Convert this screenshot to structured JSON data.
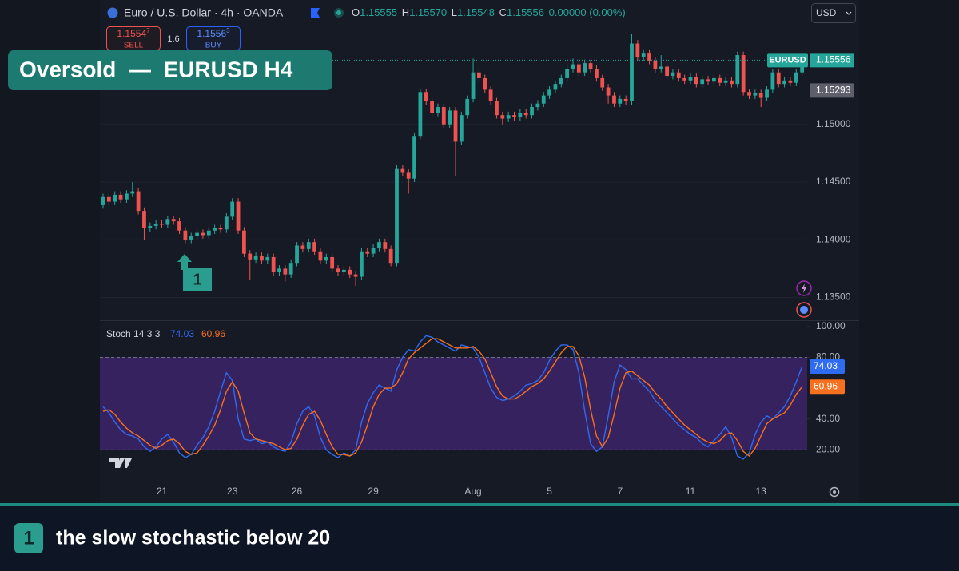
{
  "header": {
    "symbol": "Euro / U.S. Dollar · 4h · OANDA",
    "ohlc": [
      {
        "label": "O",
        "value": "1.15555"
      },
      {
        "label": "H",
        "value": "1.15570"
      },
      {
        "label": "L",
        "value": "1.15548"
      },
      {
        "label": "C",
        "value": "1.15556"
      }
    ],
    "change": "0.00000 (0.00%)",
    "currency": "USD",
    "sell": {
      "price_main": "1.1554",
      "price_pip": "7",
      "label": "SELL"
    },
    "spread": "1.6",
    "buy": {
      "price_main": "1.1556",
      "price_pip": "3",
      "label": "BUY"
    }
  },
  "title_banner": "Oversold  —  EURUSD H4",
  "footer": {
    "badge": "1",
    "text": "the slow stochastic below 20"
  },
  "chart_data": [
    {
      "type": "candlestick",
      "annotation": "1",
      "symbol_tag": "EURUSD",
      "last_price": 1.15556,
      "reference_price": 1.15293,
      "up_color": "#26a69a",
      "down_color": "#ef5350",
      "grid": true,
      "ylim": [
        1.1331,
        1.1587
      ],
      "yticks": [
        {
          "value": 1.135,
          "label": "1.13500"
        },
        {
          "value": 1.14,
          "label": "1.14000"
        },
        {
          "value": 1.145,
          "label": "1.14500"
        },
        {
          "value": 1.15,
          "label": "1.15000"
        }
      ],
      "open": [
        1.143,
        1.1437,
        1.1433,
        1.1439,
        1.1435,
        1.144,
        1.1442,
        1.1425,
        1.141,
        1.1412,
        1.1414,
        1.1413,
        1.1418,
        1.1416,
        1.1408,
        1.14,
        1.1403,
        1.1406,
        1.1404,
        1.1408,
        1.141,
        1.1409,
        1.142,
        1.1433,
        1.1408,
        1.1388,
        1.1383,
        1.1386,
        1.1382,
        1.1385,
        1.1372,
        1.1375,
        1.137,
        1.138,
        1.1395,
        1.1392,
        1.1398,
        1.139,
        1.1382,
        1.1385,
        1.1375,
        1.1372,
        1.1374,
        1.137,
        1.1368,
        1.139,
        1.1388,
        1.1393,
        1.1398,
        1.1392,
        1.138,
        1.1462,
        1.1458,
        1.1453,
        1.149,
        1.1528,
        1.152,
        1.151,
        1.1515,
        1.15,
        1.1512,
        1.1485,
        1.1508,
        1.1522,
        1.1545,
        1.154,
        1.153,
        1.152,
        1.1508,
        1.1505,
        1.1508,
        1.1506,
        1.151,
        1.1508,
        1.1515,
        1.1518,
        1.1525,
        1.153,
        1.1535,
        1.154,
        1.1548,
        1.1552,
        1.1545,
        1.1553,
        1.1548,
        1.154,
        1.1532,
        1.1525,
        1.1518,
        1.1522,
        1.152,
        1.157,
        1.1558,
        1.1562,
        1.1555,
        1.1548,
        1.155,
        1.1542,
        1.1545,
        1.154,
        1.1538,
        1.1541,
        1.1535,
        1.1539,
        1.1537,
        1.154,
        1.1536,
        1.1538,
        1.1535,
        1.156,
        1.1528,
        1.1525,
        1.1527,
        1.1523,
        1.153,
        1.1545,
        1.1535,
        1.1538,
        1.1536,
        1.1545
      ],
      "high": [
        1.144,
        1.144,
        1.1442,
        1.1442,
        1.1443,
        1.145,
        1.1445,
        1.1428,
        1.1415,
        1.1417,
        1.1417,
        1.1421,
        1.1421,
        1.1419,
        1.1411,
        1.1406,
        1.1409,
        1.1409,
        1.1411,
        1.1413,
        1.1413,
        1.1423,
        1.1436,
        1.1436,
        1.1411,
        1.1391,
        1.1389,
        1.1389,
        1.1388,
        1.1388,
        1.1378,
        1.1378,
        1.1383,
        1.1398,
        1.1398,
        1.1401,
        1.1401,
        1.1393,
        1.1388,
        1.1388,
        1.1378,
        1.1377,
        1.1377,
        1.1373,
        1.1393,
        1.1393,
        1.1396,
        1.1401,
        1.1401,
        1.1395,
        1.1465,
        1.1465,
        1.1461,
        1.1493,
        1.1531,
        1.1531,
        1.1523,
        1.1518,
        1.1518,
        1.1515,
        1.1515,
        1.1511,
        1.1525,
        1.1557,
        1.1548,
        1.1543,
        1.1533,
        1.1523,
        1.1511,
        1.1511,
        1.1511,
        1.1513,
        1.1513,
        1.1518,
        1.1521,
        1.1528,
        1.1533,
        1.1538,
        1.1543,
        1.1551,
        1.1557,
        1.1555,
        1.1556,
        1.1556,
        1.1551,
        1.1543,
        1.1535,
        1.1528,
        1.1525,
        1.1525,
        1.1578,
        1.1573,
        1.1565,
        1.1565,
        1.1558,
        1.156,
        1.1553,
        1.1548,
        1.1548,
        1.1543,
        1.1544,
        1.1544,
        1.1542,
        1.1542,
        1.1543,
        1.1543,
        1.1541,
        1.1541,
        1.1563,
        1.1563,
        1.1531,
        1.153,
        1.153,
        1.1533,
        1.1548,
        1.1548,
        1.1541,
        1.1541,
        1.1548,
        1.156
      ],
      "low": [
        1.1427,
        1.143,
        1.143,
        1.1432,
        1.1432,
        1.1437,
        1.1422,
        1.14,
        1.1407,
        1.1409,
        1.141,
        1.141,
        1.1413,
        1.1405,
        1.1397,
        1.1397,
        1.14,
        1.1401,
        1.1401,
        1.1405,
        1.1406,
        1.1406,
        1.1417,
        1.1405,
        1.1385,
        1.1365,
        1.138,
        1.1379,
        1.1379,
        1.1369,
        1.1369,
        1.1364,
        1.1367,
        1.1377,
        1.1389,
        1.1389,
        1.1387,
        1.1379,
        1.1379,
        1.1372,
        1.1369,
        1.1369,
        1.1367,
        1.136,
        1.1365,
        1.1385,
        1.1385,
        1.139,
        1.1389,
        1.1377,
        1.1377,
        1.1455,
        1.144,
        1.145,
        1.1487,
        1.1517,
        1.1507,
        1.1507,
        1.1497,
        1.1497,
        1.1455,
        1.1482,
        1.1505,
        1.1519,
        1.1537,
        1.1527,
        1.1517,
        1.1505,
        1.15,
        1.1502,
        1.1503,
        1.1503,
        1.1505,
        1.1505,
        1.1512,
        1.1515,
        1.1522,
        1.1527,
        1.1532,
        1.1537,
        1.1545,
        1.1542,
        1.1542,
        1.1545,
        1.1537,
        1.1529,
        1.1518,
        1.1515,
        1.1515,
        1.1517,
        1.1517,
        1.1555,
        1.1555,
        1.1552,
        1.1545,
        1.1545,
        1.1539,
        1.1539,
        1.1537,
        1.1535,
        1.1535,
        1.1532,
        1.1532,
        1.1534,
        1.1534,
        1.1533,
        1.1533,
        1.1532,
        1.1532,
        1.1525,
        1.1522,
        1.1522,
        1.1515,
        1.152,
        1.1527,
        1.1532,
        1.1532,
        1.1533,
        1.1533,
        1.1542
      ],
      "close": [
        1.1437,
        1.1433,
        1.1439,
        1.1435,
        1.144,
        1.1442,
        1.1425,
        1.141,
        1.1412,
        1.1414,
        1.1413,
        1.1418,
        1.1416,
        1.1408,
        1.14,
        1.1403,
        1.1406,
        1.1404,
        1.1408,
        1.141,
        1.1409,
        1.142,
        1.1433,
        1.1408,
        1.1388,
        1.1383,
        1.1386,
        1.1382,
        1.1385,
        1.1372,
        1.1375,
        1.137,
        1.138,
        1.1395,
        1.1392,
        1.1398,
        1.139,
        1.1382,
        1.1385,
        1.1375,
        1.1372,
        1.1374,
        1.137,
        1.1368,
        1.139,
        1.1388,
        1.1393,
        1.1398,
        1.1392,
        1.138,
        1.1462,
        1.1458,
        1.1453,
        1.149,
        1.1528,
        1.152,
        1.151,
        1.1515,
        1.15,
        1.1512,
        1.1485,
        1.1508,
        1.1522,
        1.1545,
        1.154,
        1.153,
        1.152,
        1.1508,
        1.1505,
        1.1508,
        1.1506,
        1.151,
        1.1508,
        1.1515,
        1.1518,
        1.1525,
        1.153,
        1.1535,
        1.154,
        1.1548,
        1.1552,
        1.1545,
        1.1553,
        1.1548,
        1.154,
        1.1532,
        1.1525,
        1.1518,
        1.1522,
        1.152,
        1.157,
        1.1558,
        1.1562,
        1.1555,
        1.1548,
        1.155,
        1.1542,
        1.1545,
        1.154,
        1.1538,
        1.1541,
        1.1535,
        1.1539,
        1.1537,
        1.154,
        1.1536,
        1.1538,
        1.1535,
        1.156,
        1.1528,
        1.1525,
        1.1527,
        1.1523,
        1.153,
        1.1545,
        1.1535,
        1.1538,
        1.1536,
        1.1545,
        1.1556
      ]
    },
    {
      "type": "line",
      "title": "Stoch 14 3 3",
      "ylim": [
        1,
        103
      ],
      "yticks": [
        {
          "value": 20,
          "label": "20.00"
        },
        {
          "value": 40,
          "label": "40.00"
        },
        {
          "value": 80,
          "label": "80.00"
        },
        {
          "value": 100,
          "label": "100.00"
        }
      ],
      "band": [
        20,
        80
      ],
      "band_color": "#3a2366",
      "categories": [
        null,
        null,
        null,
        null,
        null,
        null,
        null,
        null,
        null,
        null,
        "21",
        null,
        null,
        null,
        null,
        null,
        null,
        null,
        null,
        null,
        null,
        null,
        "23",
        null,
        null,
        null,
        null,
        null,
        null,
        null,
        null,
        null,
        null,
        "26",
        null,
        null,
        null,
        null,
        null,
        null,
        null,
        null,
        null,
        null,
        null,
        null,
        "29",
        null,
        null,
        null,
        null,
        null,
        null,
        null,
        null,
        null,
        null,
        null,
        null,
        null,
        null,
        null,
        null,
        "Aug",
        null,
        null,
        null,
        null,
        null,
        null,
        null,
        null,
        null,
        null,
        null,
        null,
        "5",
        null,
        null,
        null,
        null,
        null,
        null,
        null,
        null,
        null,
        null,
        null,
        "7",
        null,
        null,
        null,
        null,
        null,
        null,
        null,
        null,
        null,
        null,
        null,
        "11",
        null,
        null,
        null,
        null,
        null,
        null,
        null,
        null,
        null,
        null,
        null,
        "13",
        null,
        null,
        null,
        null,
        null,
        null,
        null
      ],
      "series": [
        {
          "color": "#2f6bf0",
          "values": [
            48,
            44,
            38,
            33,
            30,
            29,
            27,
            22,
            19,
            22,
            27,
            30,
            25,
            18,
            15,
            17,
            23,
            28,
            35,
            45,
            58,
            70,
            65,
            40,
            27,
            26,
            27,
            24,
            25,
            22,
            20,
            19,
            25,
            37,
            45,
            48,
            42,
            28,
            20,
            17,
            15,
            18,
            16,
            20,
            38,
            50,
            57,
            62,
            60,
            58,
            72,
            80,
            85,
            84,
            90,
            94,
            93,
            90,
            88,
            86,
            84,
            88,
            87,
            86,
            80,
            70,
            60,
            54,
            52,
            53,
            55,
            58,
            62,
            63,
            65,
            70,
            78,
            84,
            88,
            88,
            85,
            70,
            45,
            24,
            19,
            22,
            42,
            64,
            75,
            72,
            66,
            66,
            62,
            58,
            52,
            48,
            44,
            40,
            36,
            33,
            30,
            28,
            24,
            22,
            26,
            30,
            35,
            28,
            16,
            14,
            18,
            30,
            38,
            42,
            40,
            44,
            48,
            55,
            64,
            74.03
          ]
        },
        {
          "color": "#f7701d",
          "values": [
            45,
            46,
            43,
            38,
            34,
            31,
            29,
            26,
            23,
            21,
            23,
            26,
            27,
            24,
            19,
            17,
            18,
            23,
            29,
            36,
            46,
            58,
            64,
            58,
            44,
            31,
            27,
            26,
            25,
            24,
            22,
            20,
            21,
            27,
            36,
            43,
            45,
            39,
            30,
            22,
            17,
            17,
            16,
            18,
            25,
            36,
            48,
            56,
            60,
            60,
            63,
            70,
            79,
            83,
            86,
            89,
            92,
            92,
            90,
            88,
            86,
            86,
            86,
            87,
            84,
            79,
            70,
            61,
            55,
            53,
            53,
            55,
            58,
            61,
            63,
            66,
            71,
            77,
            83,
            87,
            87,
            81,
            67,
            46,
            29,
            22,
            28,
            43,
            60,
            70,
            71,
            68,
            65,
            62,
            57,
            53,
            48,
            44,
            40,
            36,
            33,
            30,
            27,
            25,
            24,
            26,
            30,
            31,
            26,
            19,
            16,
            21,
            29,
            37,
            40,
            42,
            44,
            49,
            56,
            60.96
          ]
        }
      ]
    }
  ]
}
